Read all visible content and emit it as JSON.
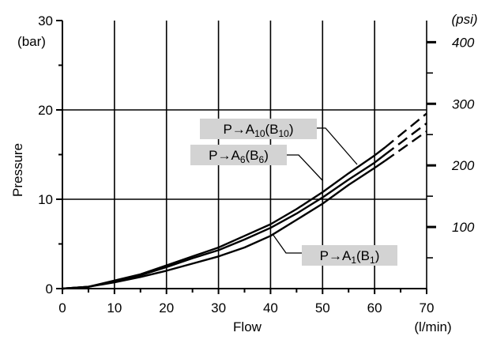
{
  "chart_data": {
    "type": "line",
    "ylabel": "Pressure",
    "y_unit": "(bar)",
    "xlabel": "Flow",
    "x_unit": "(l/min)",
    "right_unit": "(psi)",
    "xlim": [
      0,
      70
    ],
    "ylim": [
      0,
      30
    ],
    "x_ticks": [
      "0",
      "10",
      "20",
      "30",
      "40",
      "50",
      "60",
      "70"
    ],
    "y_ticks": [
      "0",
      "10",
      "20",
      "30"
    ],
    "right_ticks": [
      "100",
      "200",
      "300",
      "400"
    ],
    "grid": true,
    "series": [
      {
        "name": "P→A10(B10)",
        "label_main": "P→A",
        "label_sub1": "10",
        "label_mid": "(B",
        "label_sub2": "10",
        "label_end": ")",
        "x": [
          0,
          5,
          10,
          15,
          20,
          25,
          30,
          35,
          40,
          45,
          50,
          55,
          60,
          62
        ],
        "y": [
          0,
          0.2,
          0.9,
          1.6,
          2.6,
          3.6,
          4.6,
          5.9,
          7.2,
          8.9,
          10.8,
          12.9,
          14.9,
          15.8
        ],
        "x_dashed": [
          62,
          70
        ],
        "y_dashed": [
          15.8,
          19.6
        ]
      },
      {
        "name": "P→A6(B6)",
        "label_main": "P→A",
        "label_sub1": "6",
        "label_mid": "(B",
        "label_sub2": "6",
        "label_end": ")",
        "x": [
          0,
          5,
          10,
          15,
          20,
          25,
          30,
          35,
          40,
          45,
          50,
          55,
          60,
          62
        ],
        "y": [
          0,
          0.2,
          0.8,
          1.5,
          2.4,
          3.4,
          4.3,
          5.5,
          6.8,
          8.4,
          10.2,
          12.2,
          14.1,
          15.0
        ],
        "x_dashed": [
          62,
          70
        ],
        "y_dashed": [
          15.0,
          18.5
        ]
      },
      {
        "name": "P→A1(B1)",
        "label_main": "P→A",
        "label_sub1": "1",
        "label_mid": "(B",
        "label_sub2": "1",
        "label_end": ")",
        "x": [
          0,
          5,
          10,
          15,
          20,
          25,
          30,
          35,
          40,
          45,
          50,
          55,
          60,
          62
        ],
        "y": [
          0,
          0.2,
          0.7,
          1.3,
          2.0,
          2.8,
          3.6,
          4.6,
          5.9,
          7.7,
          9.5,
          11.6,
          13.5,
          14.3
        ],
        "x_dashed": [
          62,
          70
        ],
        "y_dashed": [
          14.3,
          17.6
        ]
      }
    ],
    "annotation_style": {
      "box_fill": "#d3d3d3",
      "line_color": "#000000"
    }
  }
}
